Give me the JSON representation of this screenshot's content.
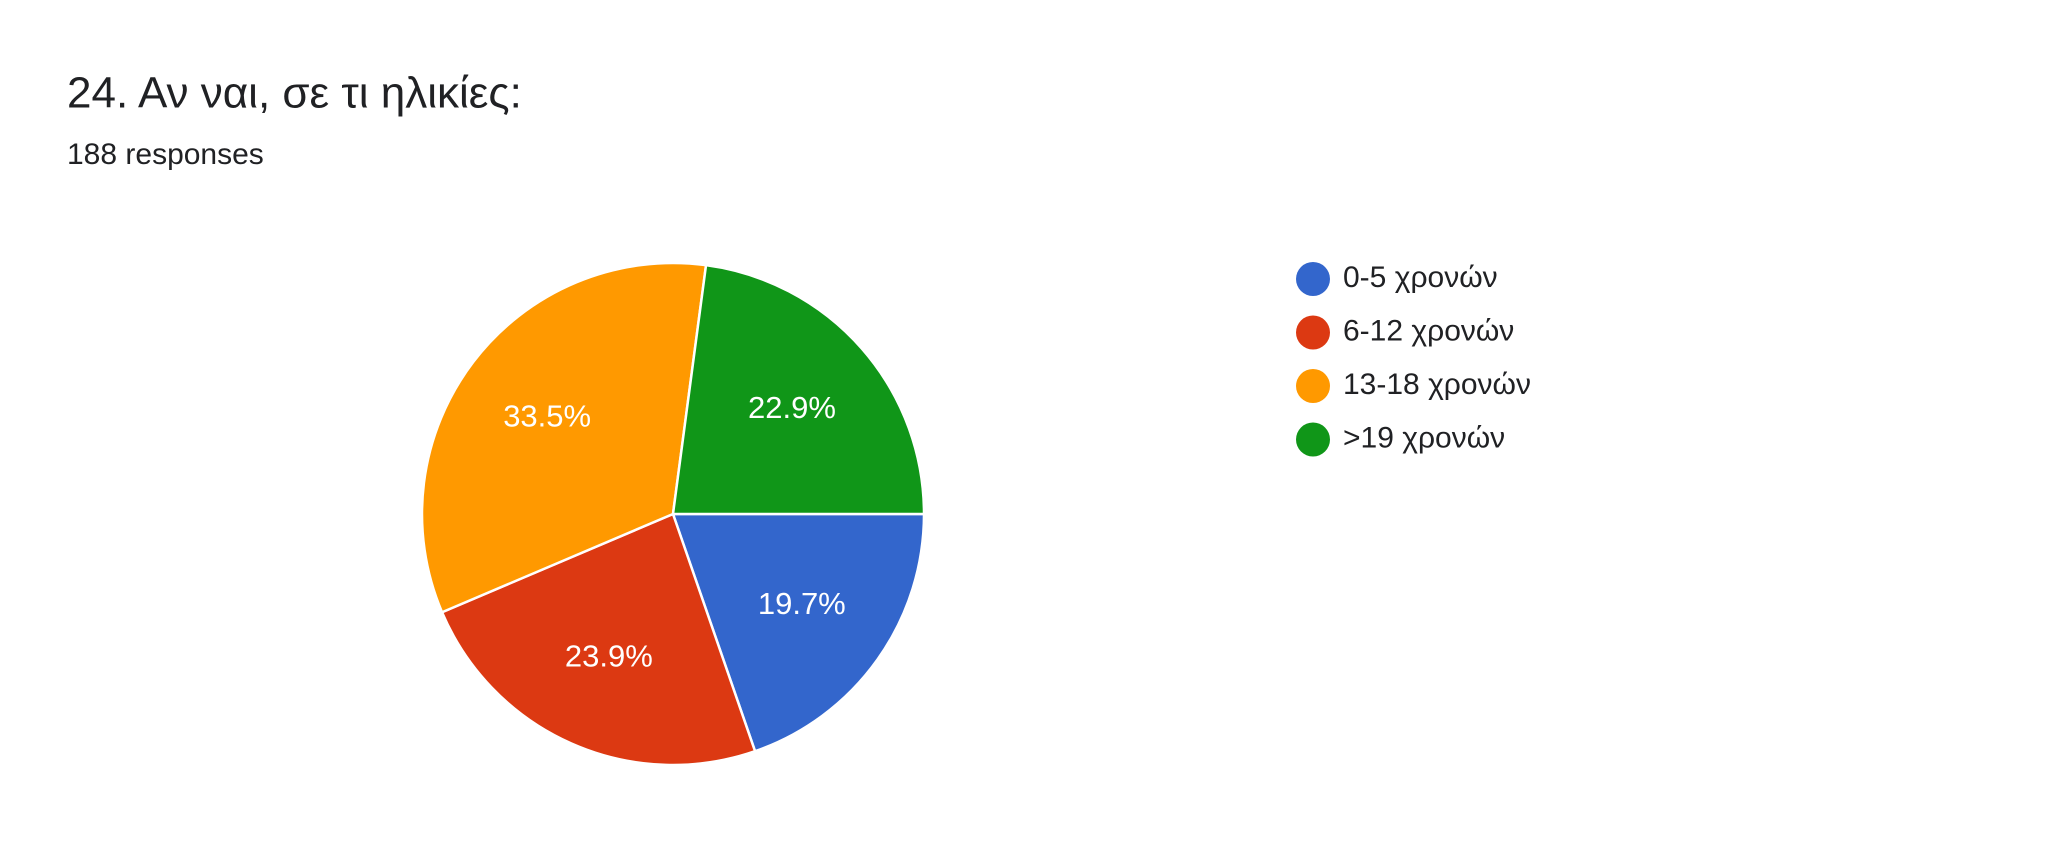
{
  "chart_data": {
    "type": "pie",
    "title": "24. Αν ναι, σε τι ηλικίες:",
    "subtitle": "188 responses",
    "categories": [
      "0-5 χρονών",
      "6-12 χρονών",
      "13-18 χρονών",
      ">19 χρονών"
    ],
    "values": [
      19.7,
      23.9,
      33.5,
      22.9
    ],
    "value_labels": [
      "19.7%",
      "23.9%",
      "33.5%",
      "22.9%"
    ],
    "colors": [
      "#3366cc",
      "#dc3912",
      "#ff9900",
      "#109618"
    ],
    "legend": "right"
  }
}
